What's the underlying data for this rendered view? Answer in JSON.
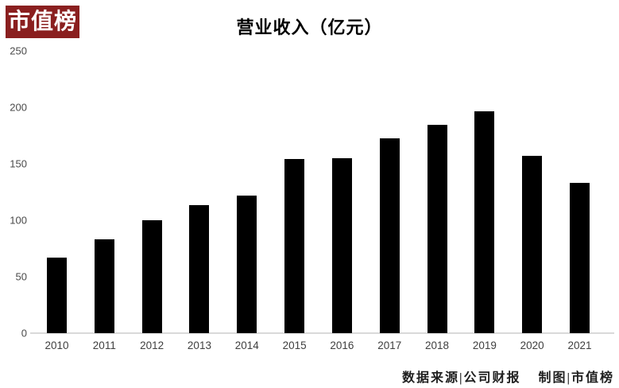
{
  "brand": {
    "logo_text": "市值榜",
    "logo_bg": "#8a1f1f",
    "logo_fg": "#ffffff"
  },
  "chart_data": {
    "type": "bar",
    "title": "营业收入（亿元）",
    "categories": [
      "2010",
      "2011",
      "2012",
      "2013",
      "2014",
      "2015",
      "2016",
      "2017",
      "2018",
      "2019",
      "2020",
      "2021"
    ],
    "values": [
      67,
      83,
      100,
      113,
      122,
      154,
      155,
      172,
      184,
      196,
      157,
      133
    ],
    "y_ticks": [
      0,
      50,
      100,
      150,
      200,
      250
    ],
    "ylim": [
      0,
      250
    ],
    "xlabel": "",
    "ylabel": "",
    "bar_color": "#000000",
    "axis_line_color": "#d9d9d9",
    "grid": false,
    "legend": "none"
  },
  "footer": {
    "source_label": "数据来源|公司财报",
    "credit_label": "制图|市值榜"
  }
}
